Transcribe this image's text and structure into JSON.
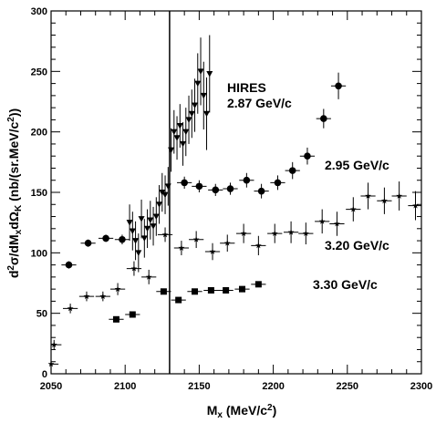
{
  "chart_data": {
    "type": "scatter",
    "title": "",
    "xlabel": "M_X (MeV/c²)",
    "ylabel": "d²σ/dM_X dΩ_K (nb/(sr.MeV/c²))",
    "xlim": [
      2050,
      2300
    ],
    "ylim": [
      0,
      300
    ],
    "x_ticks": [
      2050,
      2100,
      2150,
      2200,
      2250,
      2300
    ],
    "y_ticks": [
      0,
      50,
      100,
      150,
      200,
      250,
      300
    ],
    "vertical_line_x": 2130,
    "grid": false,
    "series": [
      {
        "name": "HIRES 2.87 GeV/c",
        "marker": "triangle-down",
        "label_lines": [
          "HIRES",
          "2.87 GeV/c"
        ],
        "points": [
          {
            "x": 2103,
            "y": 125,
            "err": 15
          },
          {
            "x": 2105,
            "y": 118,
            "err": 16
          },
          {
            "x": 2107,
            "y": 110,
            "err": 16
          },
          {
            "x": 2109,
            "y": 100,
            "err": 16
          },
          {
            "x": 2111,
            "y": 128,
            "err": 16
          },
          {
            "x": 2113,
            "y": 112,
            "err": 16
          },
          {
            "x": 2115,
            "y": 120,
            "err": 16
          },
          {
            "x": 2117,
            "y": 127,
            "err": 16
          },
          {
            "x": 2119,
            "y": 122,
            "err": 16
          },
          {
            "x": 2121,
            "y": 130,
            "err": 16
          },
          {
            "x": 2123,
            "y": 140,
            "err": 16
          },
          {
            "x": 2125,
            "y": 150,
            "err": 16
          },
          {
            "x": 2127,
            "y": 148,
            "err": 16
          },
          {
            "x": 2129,
            "y": 155,
            "err": 16
          },
          {
            "x": 2131,
            "y": 185,
            "err": 18
          },
          {
            "x": 2133,
            "y": 200,
            "err": 18
          },
          {
            "x": 2135,
            "y": 195,
            "err": 18
          },
          {
            "x": 2137,
            "y": 205,
            "err": 18
          },
          {
            "x": 2139,
            "y": 190,
            "err": 18
          },
          {
            "x": 2141,
            "y": 200,
            "err": 20
          },
          {
            "x": 2143,
            "y": 210,
            "err": 20
          },
          {
            "x": 2145,
            "y": 215,
            "err": 20
          },
          {
            "x": 2147,
            "y": 222,
            "err": 22
          },
          {
            "x": 2149,
            "y": 240,
            "err": 25
          },
          {
            "x": 2151,
            "y": 250,
            "err": 28
          },
          {
            "x": 2153,
            "y": 230,
            "err": 28
          },
          {
            "x": 2155,
            "y": 215,
            "err": 30
          },
          {
            "x": 2157,
            "y": 248,
            "err": 32
          }
        ]
      },
      {
        "name": "2.95 GeV/c",
        "marker": "circle",
        "label_lines": [
          "2.95 GeV/c"
        ],
        "points": [
          {
            "x": 2062,
            "y": 90,
            "err": 3
          },
          {
            "x": 2075,
            "y": 108,
            "err": 3
          },
          {
            "x": 2087,
            "y": 112,
            "err": 3
          },
          {
            "x": 2098,
            "y": 111,
            "err": 4
          },
          {
            "x": 2140,
            "y": 158,
            "err": 5
          },
          {
            "x": 2150,
            "y": 155,
            "err": 5
          },
          {
            "x": 2161,
            "y": 152,
            "err": 5
          },
          {
            "x": 2171,
            "y": 153,
            "err": 5
          },
          {
            "x": 2182,
            "y": 160,
            "err": 6
          },
          {
            "x": 2192,
            "y": 151,
            "err": 6
          },
          {
            "x": 2203,
            "y": 158,
            "err": 6
          },
          {
            "x": 2213,
            "y": 168,
            "err": 7
          },
          {
            "x": 2223,
            "y": 180,
            "err": 7
          },
          {
            "x": 2234,
            "y": 211,
            "err": 8
          },
          {
            "x": 2244,
            "y": 238,
            "err": 11
          }
        ]
      },
      {
        "name": "3.20 GeV/c",
        "marker": "star",
        "label_lines": [
          "3.20 GeV/c"
        ],
        "points": [
          {
            "x": 2050,
            "y": 8,
            "err": 4
          },
          {
            "x": 2052,
            "y": 24,
            "err": 4
          },
          {
            "x": 2063,
            "y": 54,
            "err": 4
          },
          {
            "x": 2074,
            "y": 64,
            "err": 4
          },
          {
            "x": 2085,
            "y": 64,
            "err": 4
          },
          {
            "x": 2095,
            "y": 70,
            "err": 5
          },
          {
            "x": 2106,
            "y": 87,
            "err": 6
          },
          {
            "x": 2116,
            "y": 80,
            "err": 6
          },
          {
            "x": 2127,
            "y": 115,
            "err": 6
          },
          {
            "x": 2138,
            "y": 104,
            "err": 6
          },
          {
            "x": 2148,
            "y": 111,
            "err": 7
          },
          {
            "x": 2159,
            "y": 101,
            "err": 7
          },
          {
            "x": 2169,
            "y": 108,
            "err": 7
          },
          {
            "x": 2180,
            "y": 116,
            "err": 8
          },
          {
            "x": 2190,
            "y": 106,
            "err": 8
          },
          {
            "x": 2201,
            "y": 116,
            "err": 8
          },
          {
            "x": 2212,
            "y": 117,
            "err": 9
          },
          {
            "x": 2222,
            "y": 116,
            "err": 9
          },
          {
            "x": 2233,
            "y": 126,
            "err": 10
          },
          {
            "x": 2243,
            "y": 124,
            "err": 10
          },
          {
            "x": 2254,
            "y": 136,
            "err": 10
          },
          {
            "x": 2264,
            "y": 147,
            "err": 11
          },
          {
            "x": 2275,
            "y": 143,
            "err": 11
          },
          {
            "x": 2285,
            "y": 147,
            "err": 12
          },
          {
            "x": 2296,
            "y": 139,
            "err": 12
          }
        ]
      },
      {
        "name": "3.30 GeV/c",
        "marker": "square",
        "label_lines": [
          "3.30 GeV/c"
        ],
        "points": [
          {
            "x": 2094,
            "y": 45,
            "err": 2
          },
          {
            "x": 2105,
            "y": 49,
            "err": 2
          },
          {
            "x": 2126,
            "y": 68,
            "err": 2
          },
          {
            "x": 2136,
            "y": 61,
            "err": 2
          },
          {
            "x": 2147,
            "y": 68,
            "err": 2
          },
          {
            "x": 2158,
            "y": 69,
            "err": 2
          },
          {
            "x": 2168,
            "y": 69,
            "err": 2
          },
          {
            "x": 2179,
            "y": 70,
            "err": 2
          },
          {
            "x": 2190,
            "y": 74,
            "err": 2
          }
        ]
      }
    ]
  }
}
